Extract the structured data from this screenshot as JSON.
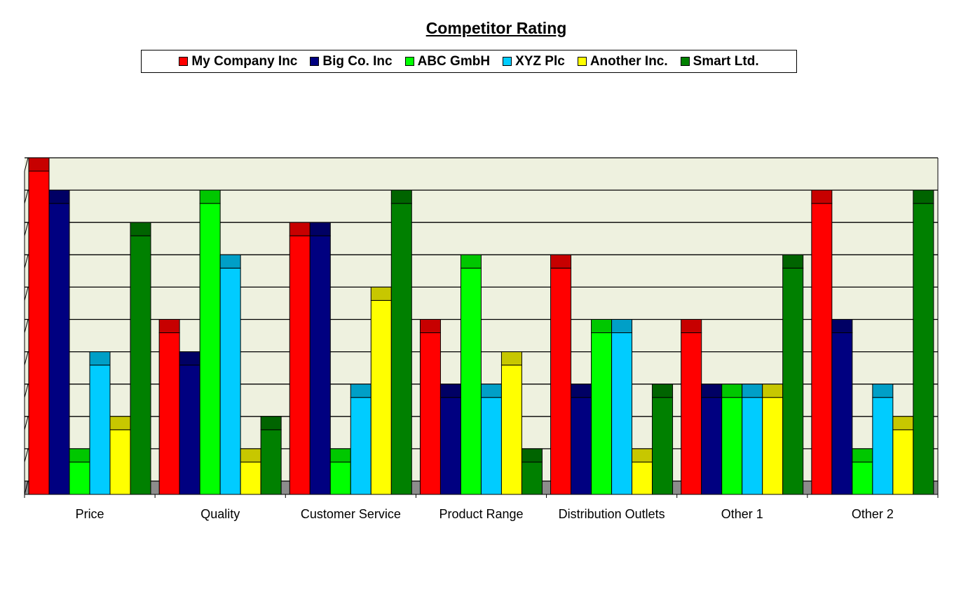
{
  "chart_data": {
    "type": "bar",
    "title": "Competitor Rating",
    "categories": [
      "Price",
      "Quality",
      "Customer Service",
      "Product Range",
      "Distribution Outlets",
      "Other 1",
      "Other 2"
    ],
    "series": [
      {
        "name": "My Company Inc",
        "color": "#ff0000",
        "values": [
          10,
          5,
          8,
          5,
          7,
          5,
          9
        ]
      },
      {
        "name": "Big Co. Inc",
        "color": "#000080",
        "values": [
          9,
          4,
          8,
          3,
          3,
          3,
          5
        ]
      },
      {
        "name": "ABC GmbH",
        "color": "#00ff00",
        "values": [
          1,
          9,
          1,
          7,
          5,
          3,
          1
        ]
      },
      {
        "name": "XYZ Plc",
        "color": "#00ccff",
        "values": [
          4,
          7,
          3,
          3,
          5,
          3,
          3
        ]
      },
      {
        "name": "Another Inc.",
        "color": "#ffff00",
        "values": [
          2,
          1,
          6,
          4,
          1,
          3,
          2
        ]
      },
      {
        "name": "Smart Ltd.",
        "color": "#008000",
        "values": [
          8,
          2,
          9,
          1,
          3,
          7,
          9
        ]
      }
    ],
    "ylim": [
      0,
      10
    ],
    "grid": true,
    "legend_position": "top",
    "plot_background": "#eef1df",
    "floor_color": "#8c8c8c"
  }
}
